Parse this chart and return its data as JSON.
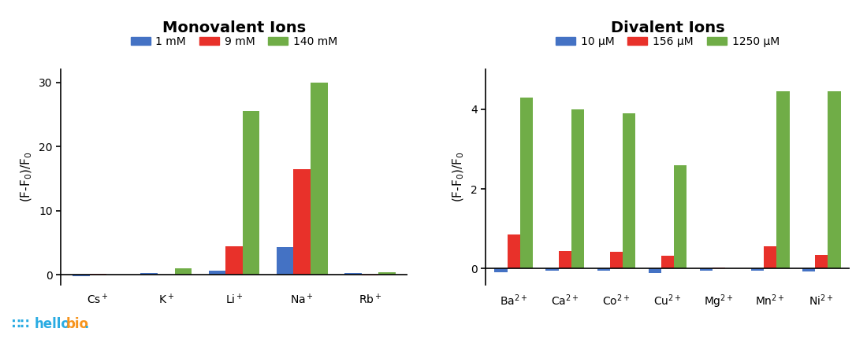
{
  "mono_title": "Monovalent Ions",
  "divalent_title": "Divalent Ions",
  "mono_categories": [
    "Cs$^+$",
    "K$^+$",
    "Li$^+$",
    "Na$^+$",
    "Rb$^+$"
  ],
  "divalent_categories": [
    "Ba$^{2+}$",
    "Ca$^{2+}$",
    "Co$^{2+}$",
    "Cu$^{2+}$",
    "Mg$^{2+}$",
    "Mn$^{2+}$",
    "Ni$^{2+}$"
  ],
  "mono_legend": [
    "1 mM",
    "9 mM",
    "140 mM"
  ],
  "divalent_legend": [
    "10 μM",
    "156 μM",
    "1250 μM"
  ],
  "colors": [
    "#4472c4",
    "#e8312a",
    "#70ad47"
  ],
  "mono_data": {
    "low": [
      -0.15,
      0.3,
      0.7,
      4.3,
      0.3
    ],
    "mid": [
      0.15,
      0.05,
      4.5,
      16.5,
      -0.1
    ],
    "high": [
      0.1,
      1.0,
      25.5,
      30.0,
      0.4
    ]
  },
  "divalent_data": {
    "low": [
      -0.1,
      -0.05,
      -0.05,
      -0.12,
      -0.05,
      -0.05,
      -0.08
    ],
    "mid": [
      0.85,
      0.45,
      0.42,
      0.33,
      0.03,
      0.57,
      0.35
    ],
    "high": [
      4.3,
      4.0,
      3.9,
      2.6,
      0.0,
      4.45,
      4.45
    ]
  },
  "mono_ylim": [
    -1.5,
    32
  ],
  "mono_yticks": [
    0,
    10,
    20,
    30
  ],
  "divalent_ylim": [
    -0.4,
    5.0
  ],
  "divalent_yticks": [
    0,
    2,
    4
  ],
  "ylabel": "(F-F$_0$)/F$_0$",
  "bar_width": 0.25,
  "bg_color": "#ffffff",
  "title_fontsize": 14,
  "label_fontsize": 11,
  "tick_fontsize": 10,
  "legend_fontsize": 10,
  "logo_dots_color": "#29abe2",
  "logo_hello_color": "#29abe2",
  "logo_bio_color": "#f7941d"
}
